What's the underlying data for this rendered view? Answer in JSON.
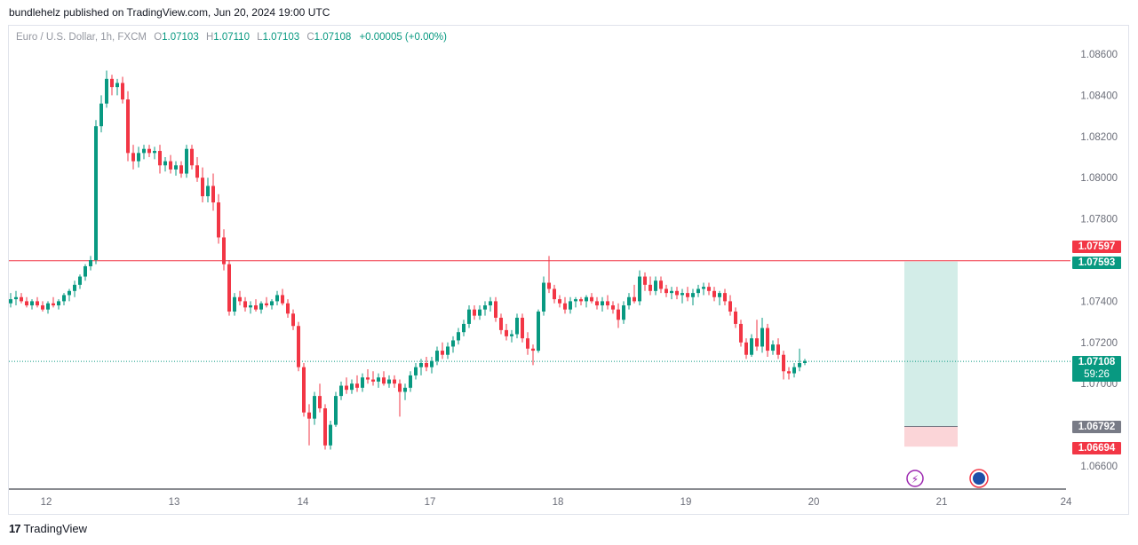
{
  "header": {
    "published_by": "bundlehelz published on TradingView.com, Jun 20, 2024 19:00 UTC"
  },
  "legend": {
    "symbol": "Euro / U.S. Dollar, 1h, FXCM",
    "o_label": "O",
    "o_value": "1.07103",
    "h_label": "H",
    "h_value": "1.07110",
    "l_label": "L",
    "l_value": "1.07103",
    "c_label": "C",
    "c_value": "1.07108",
    "change": "+0.00005 (+0.00%)"
  },
  "colors": {
    "up": "#089981",
    "down": "#f23645",
    "axis_text": "#6a6d78",
    "grid_line": "#131722"
  },
  "tags": {
    "resistance": "1.07597",
    "target": "1.07593",
    "current_price": "1.07108",
    "countdown": "59:26",
    "stop": "1.06792",
    "stop2": "1.06694"
  },
  "footer": {
    "brand": "TradingView"
  },
  "chart_data": {
    "type": "candlestick",
    "symbol": "EURUSD",
    "interval": "1h",
    "y_ticks": [
      "1.08600",
      "1.08400",
      "1.08200",
      "1.08000",
      "1.07800",
      "1.07400",
      "1.07200",
      "1.07000",
      "1.06600"
    ],
    "ylim": [
      1.0655,
      1.087
    ],
    "x_ticks": [
      "12",
      "13",
      "14",
      "17",
      "18",
      "19",
      "20",
      "21",
      "24"
    ],
    "horizontal_line": 1.07597,
    "current_price": 1.07108,
    "long_position": {
      "entry": 1.06792,
      "target": 1.07593,
      "stop": 1.06694
    },
    "series": [
      {
        "o": 1.0739,
        "h": 1.0744,
        "l": 1.0737,
        "c": 1.0741
      },
      {
        "o": 1.0741,
        "h": 1.0745,
        "l": 1.0738,
        "c": 1.0742
      },
      {
        "o": 1.0742,
        "h": 1.0744,
        "l": 1.0739,
        "c": 1.074
      },
      {
        "o": 1.074,
        "h": 1.0742,
        "l": 1.0737,
        "c": 1.0738
      },
      {
        "o": 1.0738,
        "h": 1.0741,
        "l": 1.0736,
        "c": 1.074
      },
      {
        "o": 1.074,
        "h": 1.0742,
        "l": 1.0737,
        "c": 1.0738
      },
      {
        "o": 1.0738,
        "h": 1.074,
        "l": 1.0735,
        "c": 1.0736
      },
      {
        "o": 1.0736,
        "h": 1.074,
        "l": 1.0734,
        "c": 1.0739
      },
      {
        "o": 1.0739,
        "h": 1.0742,
        "l": 1.0737,
        "c": 1.0738
      },
      {
        "o": 1.0738,
        "h": 1.0741,
        "l": 1.0736,
        "c": 1.074
      },
      {
        "o": 1.074,
        "h": 1.0744,
        "l": 1.0738,
        "c": 1.0743
      },
      {
        "o": 1.0743,
        "h": 1.0746,
        "l": 1.074,
        "c": 1.0745
      },
      {
        "o": 1.0745,
        "h": 1.075,
        "l": 1.0742,
        "c": 1.0748
      },
      {
        "o": 1.0748,
        "h": 1.0753,
        "l": 1.0746,
        "c": 1.0752
      },
      {
        "o": 1.0752,
        "h": 1.0758,
        "l": 1.075,
        "c": 1.0757
      },
      {
        "o": 1.0757,
        "h": 1.0762,
        "l": 1.0755,
        "c": 1.076
      },
      {
        "o": 1.076,
        "h": 1.0828,
        "l": 1.0758,
        "c": 1.0825
      },
      {
        "o": 1.0825,
        "h": 1.084,
        "l": 1.0822,
        "c": 1.0836
      },
      {
        "o": 1.0836,
        "h": 1.0852,
        "l": 1.0834,
        "c": 1.0848
      },
      {
        "o": 1.0848,
        "h": 1.085,
        "l": 1.084,
        "c": 1.0844
      },
      {
        "o": 1.0844,
        "h": 1.0848,
        "l": 1.084,
        "c": 1.0846
      },
      {
        "o": 1.0846,
        "h": 1.0849,
        "l": 1.0836,
        "c": 1.0838
      },
      {
        "o": 1.0838,
        "h": 1.0842,
        "l": 1.0808,
        "c": 1.0812
      },
      {
        "o": 1.0812,
        "h": 1.0816,
        "l": 1.0804,
        "c": 1.0808
      },
      {
        "o": 1.0808,
        "h": 1.0815,
        "l": 1.0805,
        "c": 1.0812
      },
      {
        "o": 1.0812,
        "h": 1.0816,
        "l": 1.0809,
        "c": 1.0814
      },
      {
        "o": 1.0814,
        "h": 1.0816,
        "l": 1.081,
        "c": 1.0812
      },
      {
        "o": 1.0812,
        "h": 1.0815,
        "l": 1.0809,
        "c": 1.0813
      },
      {
        "o": 1.0813,
        "h": 1.0816,
        "l": 1.0802,
        "c": 1.0806
      },
      {
        "o": 1.0806,
        "h": 1.081,
        "l": 1.0803,
        "c": 1.0808
      },
      {
        "o": 1.0808,
        "h": 1.0811,
        "l": 1.0802,
        "c": 1.0804
      },
      {
        "o": 1.0804,
        "h": 1.0808,
        "l": 1.0801,
        "c": 1.0806
      },
      {
        "o": 1.0806,
        "h": 1.0808,
        "l": 1.08,
        "c": 1.0802
      },
      {
        "o": 1.0802,
        "h": 1.0816,
        "l": 1.08,
        "c": 1.0814
      },
      {
        "o": 1.0814,
        "h": 1.0816,
        "l": 1.0804,
        "c": 1.0806
      },
      {
        "o": 1.0806,
        "h": 1.081,
        "l": 1.0798,
        "c": 1.08
      },
      {
        "o": 1.08,
        "h": 1.0805,
        "l": 1.0788,
        "c": 1.0791
      },
      {
        "o": 1.0791,
        "h": 1.08,
        "l": 1.0788,
        "c": 1.0796
      },
      {
        "o": 1.0796,
        "h": 1.0802,
        "l": 1.0784,
        "c": 1.0788
      },
      {
        "o": 1.0788,
        "h": 1.0792,
        "l": 1.0768,
        "c": 1.0771
      },
      {
        "o": 1.0771,
        "h": 1.0775,
        "l": 1.0755,
        "c": 1.0758
      },
      {
        "o": 1.0758,
        "h": 1.076,
        "l": 1.0733,
        "c": 1.0735
      },
      {
        "o": 1.0735,
        "h": 1.0744,
        "l": 1.0733,
        "c": 1.0742
      },
      {
        "o": 1.0742,
        "h": 1.0745,
        "l": 1.0738,
        "c": 1.074
      },
      {
        "o": 1.074,
        "h": 1.0742,
        "l": 1.0735,
        "c": 1.0737
      },
      {
        "o": 1.0737,
        "h": 1.074,
        "l": 1.0734,
        "c": 1.0738
      },
      {
        "o": 1.0738,
        "h": 1.0741,
        "l": 1.0735,
        "c": 1.0736
      },
      {
        "o": 1.0736,
        "h": 1.074,
        "l": 1.0734,
        "c": 1.0739
      },
      {
        "o": 1.0739,
        "h": 1.0742,
        "l": 1.0737,
        "c": 1.0738
      },
      {
        "o": 1.0738,
        "h": 1.0741,
        "l": 1.0736,
        "c": 1.074
      },
      {
        "o": 1.074,
        "h": 1.0745,
        "l": 1.0738,
        "c": 1.0743
      },
      {
        "o": 1.0743,
        "h": 1.0746,
        "l": 1.0738,
        "c": 1.0739
      },
      {
        "o": 1.0739,
        "h": 1.0741,
        "l": 1.0732,
        "c": 1.0734
      },
      {
        "o": 1.0734,
        "h": 1.0736,
        "l": 1.0726,
        "c": 1.0728
      },
      {
        "o": 1.0728,
        "h": 1.073,
        "l": 1.0706,
        "c": 1.0708
      },
      {
        "o": 1.0708,
        "h": 1.071,
        "l": 1.0684,
        "c": 1.0686
      },
      {
        "o": 1.0686,
        "h": 1.069,
        "l": 1.067,
        "c": 1.0683
      },
      {
        "o": 1.0683,
        "h": 1.0696,
        "l": 1.068,
        "c": 1.0694
      },
      {
        "o": 1.0694,
        "h": 1.07,
        "l": 1.0686,
        "c": 1.0688
      },
      {
        "o": 1.0688,
        "h": 1.069,
        "l": 1.0668,
        "c": 1.067
      },
      {
        "o": 1.067,
        "h": 1.0682,
        "l": 1.0668,
        "c": 1.068
      },
      {
        "o": 1.068,
        "h": 1.0696,
        "l": 1.0679,
        "c": 1.0694
      },
      {
        "o": 1.0694,
        "h": 1.0701,
        "l": 1.0692,
        "c": 1.0699
      },
      {
        "o": 1.0699,
        "h": 1.0703,
        "l": 1.0695,
        "c": 1.0697
      },
      {
        "o": 1.0697,
        "h": 1.0702,
        "l": 1.0695,
        "c": 1.07
      },
      {
        "o": 1.07,
        "h": 1.0704,
        "l": 1.0696,
        "c": 1.0698
      },
      {
        "o": 1.0698,
        "h": 1.0705,
        "l": 1.0696,
        "c": 1.0703
      },
      {
        "o": 1.0703,
        "h": 1.0707,
        "l": 1.07,
        "c": 1.0702
      },
      {
        "o": 1.0702,
        "h": 1.0706,
        "l": 1.0699,
        "c": 1.0701
      },
      {
        "o": 1.0701,
        "h": 1.0705,
        "l": 1.0698,
        "c": 1.0703
      },
      {
        "o": 1.0703,
        "h": 1.0706,
        "l": 1.0699,
        "c": 1.07
      },
      {
        "o": 1.07,
        "h": 1.0704,
        "l": 1.0698,
        "c": 1.0702
      },
      {
        "o": 1.0702,
        "h": 1.0704,
        "l": 1.0698,
        "c": 1.07
      },
      {
        "o": 1.07,
        "h": 1.0702,
        "l": 1.0684,
        "c": 1.0696
      },
      {
        "o": 1.0696,
        "h": 1.07,
        "l": 1.0692,
        "c": 1.0698
      },
      {
        "o": 1.0698,
        "h": 1.0706,
        "l": 1.0696,
        "c": 1.0704
      },
      {
        "o": 1.0704,
        "h": 1.071,
        "l": 1.0702,
        "c": 1.0708
      },
      {
        "o": 1.0708,
        "h": 1.0712,
        "l": 1.0704,
        "c": 1.071
      },
      {
        "o": 1.071,
        "h": 1.0713,
        "l": 1.0706,
        "c": 1.0708
      },
      {
        "o": 1.0708,
        "h": 1.0713,
        "l": 1.0705,
        "c": 1.0711
      },
      {
        "o": 1.0711,
        "h": 1.0718,
        "l": 1.0709,
        "c": 1.0716
      },
      {
        "o": 1.0716,
        "h": 1.072,
        "l": 1.0712,
        "c": 1.0714
      },
      {
        "o": 1.0714,
        "h": 1.072,
        "l": 1.0712,
        "c": 1.0718
      },
      {
        "o": 1.0718,
        "h": 1.0723,
        "l": 1.0715,
        "c": 1.0721
      },
      {
        "o": 1.0721,
        "h": 1.0727,
        "l": 1.0719,
        "c": 1.0725
      },
      {
        "o": 1.0725,
        "h": 1.0731,
        "l": 1.0723,
        "c": 1.0729
      },
      {
        "o": 1.0729,
        "h": 1.0738,
        "l": 1.0727,
        "c": 1.0736
      },
      {
        "o": 1.0736,
        "h": 1.0738,
        "l": 1.0731,
        "c": 1.0733
      },
      {
        "o": 1.0733,
        "h": 1.0738,
        "l": 1.0731,
        "c": 1.0736
      },
      {
        "o": 1.0736,
        "h": 1.074,
        "l": 1.0733,
        "c": 1.0738
      },
      {
        "o": 1.0738,
        "h": 1.0742,
        "l": 1.0735,
        "c": 1.074
      },
      {
        "o": 1.074,
        "h": 1.0742,
        "l": 1.073,
        "c": 1.0732
      },
      {
        "o": 1.0732,
        "h": 1.0734,
        "l": 1.0724,
        "c": 1.0726
      },
      {
        "o": 1.0726,
        "h": 1.0729,
        "l": 1.0721,
        "c": 1.0723
      },
      {
        "o": 1.0723,
        "h": 1.0726,
        "l": 1.072,
        "c": 1.0724
      },
      {
        "o": 1.0724,
        "h": 1.0734,
        "l": 1.0722,
        "c": 1.0732
      },
      {
        "o": 1.0732,
        "h": 1.0734,
        "l": 1.072,
        "c": 1.0722
      },
      {
        "o": 1.0722,
        "h": 1.0725,
        "l": 1.0714,
        "c": 1.0717
      },
      {
        "o": 1.0717,
        "h": 1.0719,
        "l": 1.0709,
        "c": 1.0716
      },
      {
        "o": 1.0716,
        "h": 1.0736,
        "l": 1.0715,
        "c": 1.0735
      },
      {
        "o": 1.0735,
        "h": 1.0752,
        "l": 1.0733,
        "c": 1.0749
      },
      {
        "o": 1.0749,
        "h": 1.0762,
        "l": 1.0744,
        "c": 1.0746
      },
      {
        "o": 1.0746,
        "h": 1.0748,
        "l": 1.0739,
        "c": 1.0741
      },
      {
        "o": 1.0741,
        "h": 1.0743,
        "l": 1.0737,
        "c": 1.0739
      },
      {
        "o": 1.0739,
        "h": 1.0742,
        "l": 1.0734,
        "c": 1.0736
      },
      {
        "o": 1.0736,
        "h": 1.0742,
        "l": 1.0734,
        "c": 1.074
      },
      {
        "o": 1.074,
        "h": 1.0742,
        "l": 1.0737,
        "c": 1.0741
      },
      {
        "o": 1.0741,
        "h": 1.0742,
        "l": 1.0738,
        "c": 1.074
      },
      {
        "o": 1.074,
        "h": 1.0743,
        "l": 1.0737,
        "c": 1.0742
      },
      {
        "o": 1.0742,
        "h": 1.0744,
        "l": 1.0739,
        "c": 1.074
      },
      {
        "o": 1.074,
        "h": 1.0742,
        "l": 1.0736,
        "c": 1.0738
      },
      {
        "o": 1.0738,
        "h": 1.0742,
        "l": 1.0735,
        "c": 1.074
      },
      {
        "o": 1.074,
        "h": 1.0743,
        "l": 1.0736,
        "c": 1.0738
      },
      {
        "o": 1.0738,
        "h": 1.074,
        "l": 1.0734,
        "c": 1.0736
      },
      {
        "o": 1.0736,
        "h": 1.0739,
        "l": 1.0727,
        "c": 1.0731
      },
      {
        "o": 1.0731,
        "h": 1.074,
        "l": 1.0729,
        "c": 1.0738
      },
      {
        "o": 1.0738,
        "h": 1.0744,
        "l": 1.0736,
        "c": 1.0742
      },
      {
        "o": 1.0742,
        "h": 1.0748,
        "l": 1.0739,
        "c": 1.074
      },
      {
        "o": 1.074,
        "h": 1.0755,
        "l": 1.0738,
        "c": 1.0752
      },
      {
        "o": 1.0752,
        "h": 1.0754,
        "l": 1.0745,
        "c": 1.0748
      },
      {
        "o": 1.0748,
        "h": 1.0752,
        "l": 1.0743,
        "c": 1.0745
      },
      {
        "o": 1.0745,
        "h": 1.0752,
        "l": 1.0743,
        "c": 1.075
      },
      {
        "o": 1.075,
        "h": 1.0752,
        "l": 1.0744,
        "c": 1.0746
      },
      {
        "o": 1.0746,
        "h": 1.0748,
        "l": 1.0742,
        "c": 1.0744
      },
      {
        "o": 1.0744,
        "h": 1.0747,
        "l": 1.0741,
        "c": 1.0745
      },
      {
        "o": 1.0745,
        "h": 1.0747,
        "l": 1.0741,
        "c": 1.0743
      },
      {
        "o": 1.0743,
        "h": 1.0746,
        "l": 1.0739,
        "c": 1.0744
      },
      {
        "o": 1.0744,
        "h": 1.0747,
        "l": 1.074,
        "c": 1.0742
      },
      {
        "o": 1.0742,
        "h": 1.0746,
        "l": 1.0738,
        "c": 1.0744
      },
      {
        "o": 1.0744,
        "h": 1.0748,
        "l": 1.0742,
        "c": 1.0746
      },
      {
        "o": 1.0746,
        "h": 1.0749,
        "l": 1.0743,
        "c": 1.0747
      },
      {
        "o": 1.0747,
        "h": 1.0749,
        "l": 1.0743,
        "c": 1.0745
      },
      {
        "o": 1.0745,
        "h": 1.0747,
        "l": 1.074,
        "c": 1.0742
      },
      {
        "o": 1.0742,
        "h": 1.0745,
        "l": 1.0738,
        "c": 1.0744
      },
      {
        "o": 1.0744,
        "h": 1.0746,
        "l": 1.0738,
        "c": 1.074
      },
      {
        "o": 1.074,
        "h": 1.0743,
        "l": 1.0733,
        "c": 1.0735
      },
      {
        "o": 1.0735,
        "h": 1.0737,
        "l": 1.0727,
        "c": 1.0729
      },
      {
        "o": 1.0729,
        "h": 1.0731,
        "l": 1.0718,
        "c": 1.072
      },
      {
        "o": 1.072,
        "h": 1.0722,
        "l": 1.0712,
        "c": 1.0714
      },
      {
        "o": 1.0714,
        "h": 1.0724,
        "l": 1.0713,
        "c": 1.0722
      },
      {
        "o": 1.0722,
        "h": 1.0731,
        "l": 1.0716,
        "c": 1.0718
      },
      {
        "o": 1.0718,
        "h": 1.0732,
        "l": 1.0715,
        "c": 1.0727
      },
      {
        "o": 1.0727,
        "h": 1.0729,
        "l": 1.0713,
        "c": 1.0716
      },
      {
        "o": 1.0716,
        "h": 1.0721,
        "l": 1.0714,
        "c": 1.0719
      },
      {
        "o": 1.0719,
        "h": 1.0722,
        "l": 1.0712,
        "c": 1.0714
      },
      {
        "o": 1.0714,
        "h": 1.0716,
        "l": 1.0702,
        "c": 1.0706
      },
      {
        "o": 1.0706,
        "h": 1.0708,
        "l": 1.0702,
        "c": 1.0705
      },
      {
        "o": 1.0705,
        "h": 1.071,
        "l": 1.0703,
        "c": 1.0708
      },
      {
        "o": 1.0708,
        "h": 1.0717,
        "l": 1.0706,
        "c": 1.071
      },
      {
        "o": 1.071,
        "h": 1.0712,
        "l": 1.0709,
        "c": 1.0711
      }
    ]
  }
}
